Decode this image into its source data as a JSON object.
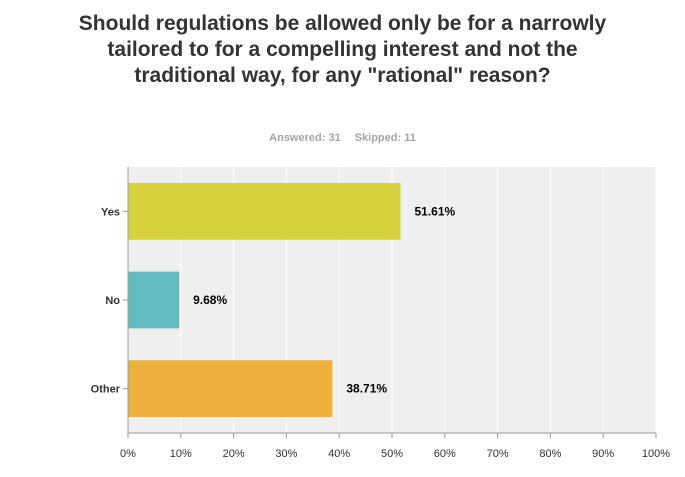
{
  "title": "Should regulations be allowed only be for a narrowly tailored to for a compelling interest and not the traditional way, for any \"rational\" reason?",
  "stats": {
    "answered": "Answered: 31",
    "skipped": "Skipped: 11"
  },
  "chart_data": {
    "type": "bar",
    "orientation": "horizontal",
    "categories": [
      "Yes",
      "No",
      "Other"
    ],
    "values": [
      51.61,
      9.68,
      38.71
    ],
    "value_labels": [
      "51.61%",
      "9.68%",
      "38.71%"
    ],
    "colors": [
      "#d5d23c",
      "#61bbbf",
      "#efb13d"
    ],
    "xlim": [
      0,
      100
    ],
    "x_ticks": [
      "0%",
      "10%",
      "20%",
      "30%",
      "40%",
      "50%",
      "60%",
      "70%",
      "80%",
      "90%",
      "100%"
    ],
    "grid": true,
    "background": "#efefef",
    "grid_color": "#ffffff"
  }
}
